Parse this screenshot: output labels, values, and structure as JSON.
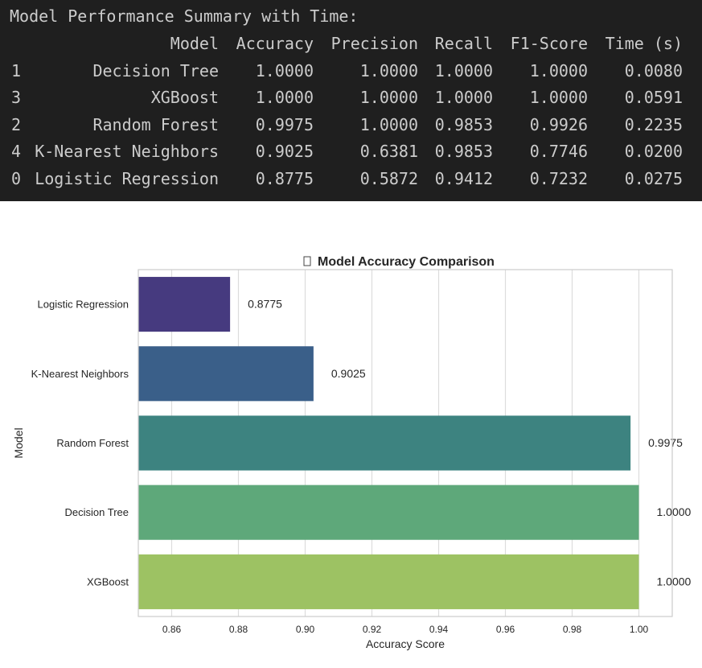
{
  "terminal": {
    "title": "Model Performance Summary with Time:",
    "headers": [
      "Model",
      "Accuracy",
      "Precision",
      "Recall",
      "F1-Score",
      "Time (s)"
    ],
    "rows": [
      {
        "index": "1",
        "model": "Decision Tree",
        "accuracy": "1.0000",
        "precision": "1.0000",
        "recall": "1.0000",
        "f1": "1.0000",
        "time": "0.0080"
      },
      {
        "index": "3",
        "model": "XGBoost",
        "accuracy": "1.0000",
        "precision": "1.0000",
        "recall": "1.0000",
        "f1": "1.0000",
        "time": "0.0591"
      },
      {
        "index": "2",
        "model": "Random Forest",
        "accuracy": "0.9975",
        "precision": "1.0000",
        "recall": "0.9853",
        "f1": "0.9926",
        "time": "0.2235"
      },
      {
        "index": "4",
        "model": "K-Nearest Neighbors",
        "accuracy": "0.9025",
        "precision": "0.6381",
        "recall": "0.9853",
        "f1": "0.7746",
        "time": "0.0200"
      },
      {
        "index": "0",
        "model": "Logistic Regression",
        "accuracy": "0.8775",
        "precision": "0.5872",
        "recall": "0.9412",
        "f1": "0.7232",
        "time": "0.0275"
      }
    ]
  },
  "chart_data": {
    "type": "bar",
    "orientation": "horizontal",
    "title": "Model Accuracy Comparison",
    "title_icon": "missing-glyph-box",
    "xlabel": "Accuracy Score",
    "ylabel": "Model",
    "categories": [
      "Logistic Regression",
      "K-Nearest Neighbors",
      "Random Forest",
      "Decision Tree",
      "XGBoost"
    ],
    "values": [
      0.8775,
      0.9025,
      0.9975,
      1.0,
      1.0
    ],
    "value_labels": [
      "0.8775",
      "0.9025",
      "0.9975",
      "1.0000",
      "1.0000"
    ],
    "colors": [
      "#463a7f",
      "#3a5f89",
      "#3d8380",
      "#5ea87a",
      "#9dc263"
    ],
    "xlim": [
      0.85,
      1.01
    ],
    "xticks": [
      0.86,
      0.88,
      0.9,
      0.92,
      0.94,
      0.96,
      0.98,
      1.0
    ],
    "xtick_labels": [
      "0.86",
      "0.88",
      "0.90",
      "0.92",
      "0.94",
      "0.96",
      "0.98",
      "1.00"
    ],
    "grid": true
  }
}
